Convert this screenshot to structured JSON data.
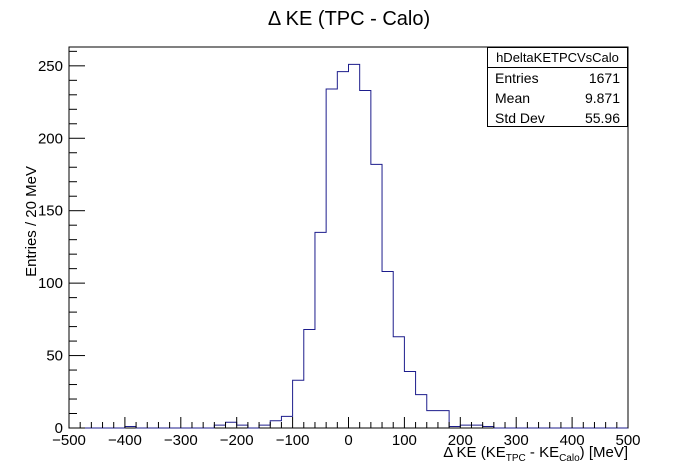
{
  "chart_data": {
    "type": "bar",
    "style": "step-histogram",
    "title": "Δ KE (TPC - Calo)",
    "xlabel": {
      "prefix": "Δ KE (KE",
      "sub1": "TPC",
      "middle": " - KE",
      "sub2": "Calo",
      "suffix": ") [MeV]"
    },
    "ylabel": "Entries / 20 MeV",
    "xlim": [
      -500,
      500
    ],
    "ylim": [
      0,
      263
    ],
    "bin_width": 20,
    "xticks": [
      -500,
      -400,
      -300,
      -200,
      -100,
      0,
      100,
      200,
      300,
      400,
      500
    ],
    "xtick_labels": [
      "−500",
      "−400",
      "−300",
      "−200",
      "−100",
      "0",
      "100",
      "200",
      "300",
      "400",
      "500"
    ],
    "yticks": [
      0,
      50,
      100,
      150,
      200,
      250
    ],
    "ytick_labels": [
      "0",
      "50",
      "100",
      "150",
      "200",
      "250"
    ],
    "line_color": "#1d1d8c",
    "bins": [
      {
        "x0": -500,
        "value": 0
      },
      {
        "x0": -480,
        "value": 0
      },
      {
        "x0": -460,
        "value": 0
      },
      {
        "x0": -440,
        "value": 0
      },
      {
        "x0": -420,
        "value": 0
      },
      {
        "x0": -400,
        "value": 1
      },
      {
        "x0": -380,
        "value": 0
      },
      {
        "x0": -360,
        "value": 0
      },
      {
        "x0": -340,
        "value": 0
      },
      {
        "x0": -320,
        "value": 0
      },
      {
        "x0": -300,
        "value": 0
      },
      {
        "x0": -280,
        "value": 0
      },
      {
        "x0": -260,
        "value": 0
      },
      {
        "x0": -240,
        "value": 2
      },
      {
        "x0": -220,
        "value": 4
      },
      {
        "x0": -200,
        "value": 2
      },
      {
        "x0": -180,
        "value": 0
      },
      {
        "x0": -160,
        "value": 2
      },
      {
        "x0": -140,
        "value": 5
      },
      {
        "x0": -120,
        "value": 8
      },
      {
        "x0": -100,
        "value": 33
      },
      {
        "x0": -80,
        "value": 68
      },
      {
        "x0": -60,
        "value": 135
      },
      {
        "x0": -40,
        "value": 234
      },
      {
        "x0": -20,
        "value": 246
      },
      {
        "x0": 0,
        "value": 251
      },
      {
        "x0": 20,
        "value": 233
      },
      {
        "x0": 40,
        "value": 182
      },
      {
        "x0": 60,
        "value": 108
      },
      {
        "x0": 80,
        "value": 63
      },
      {
        "x0": 100,
        "value": 39
      },
      {
        "x0": 120,
        "value": 23
      },
      {
        "x0": 140,
        "value": 12
      },
      {
        "x0": 160,
        "value": 12
      },
      {
        "x0": 180,
        "value": 1
      },
      {
        "x0": 200,
        "value": 2
      },
      {
        "x0": 220,
        "value": 2
      },
      {
        "x0": 240,
        "value": 1
      },
      {
        "x0": 260,
        "value": 0
      },
      {
        "x0": 280,
        "value": 0
      },
      {
        "x0": 300,
        "value": 0
      },
      {
        "x0": 320,
        "value": 0
      },
      {
        "x0": 340,
        "value": 0
      },
      {
        "x0": 360,
        "value": 0
      },
      {
        "x0": 380,
        "value": 0
      },
      {
        "x0": 400,
        "value": 0
      },
      {
        "x0": 420,
        "value": 0
      },
      {
        "x0": 440,
        "value": 0
      },
      {
        "x0": 460,
        "value": 0
      },
      {
        "x0": 480,
        "value": 0
      }
    ],
    "stats": {
      "name": "hDeltaKETPCVsCalo",
      "entries_label": "Entries",
      "entries": "1671",
      "mean_label": "Mean",
      "mean": "9.871",
      "stddev_label": "Std Dev",
      "stddev": "55.96"
    },
    "legend_placement": "top-right",
    "grid": false
  }
}
